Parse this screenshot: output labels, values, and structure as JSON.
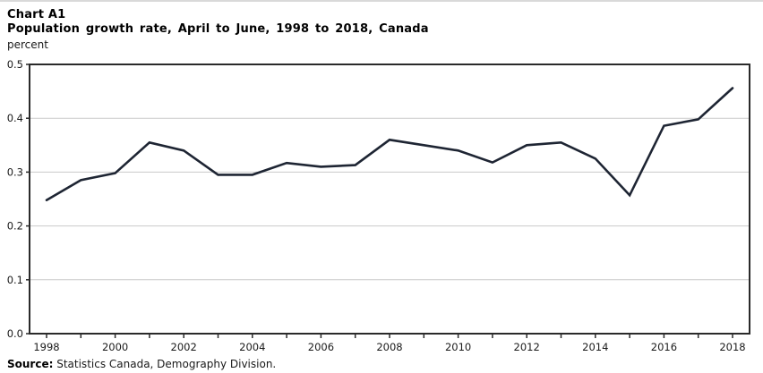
{
  "header": {
    "chart_label": "Chart A1",
    "chart_title": "Population growth rate, April to June, 1998 to 2018, Canada",
    "unit_label": "percent"
  },
  "source": {
    "prefix": "Source:",
    "text": " Statistics Canada, Demography Division."
  },
  "colors": {
    "line": "#1e2533",
    "grid": "#c9c9c9",
    "axis": "#2a2a2a",
    "tick_text": "#1a1a1a"
  },
  "chart_data": {
    "type": "line",
    "title": "Population growth rate, April to June, 1998 to 2018, Canada",
    "xlabel": "",
    "ylabel": "percent",
    "x": [
      1998,
      1999,
      2000,
      2001,
      2002,
      2003,
      2004,
      2005,
      2006,
      2007,
      2008,
      2009,
      2010,
      2011,
      2012,
      2013,
      2014,
      2015,
      2016,
      2017,
      2018
    ],
    "values": [
      0.248,
      0.285,
      0.298,
      0.355,
      0.34,
      0.295,
      0.295,
      0.317,
      0.31,
      0.313,
      0.36,
      0.35,
      0.34,
      0.318,
      0.35,
      0.355,
      0.325,
      0.257,
      0.386,
      0.398,
      0.456
    ],
    "ylim": [
      0,
      0.5
    ],
    "yticks": [
      0.0,
      0.1,
      0.2,
      0.3,
      0.4,
      0.5
    ],
    "ytick_labels": [
      "0.0",
      "0.1",
      "0.2",
      "0.3",
      "0.4",
      "0.5"
    ],
    "xtick_labels": [
      "1998",
      "2000",
      "2002",
      "2004",
      "2006",
      "2008",
      "2010",
      "2012",
      "2014",
      "2016",
      "2018"
    ],
    "xtick_label_years": [
      1998,
      2000,
      2002,
      2004,
      2006,
      2008,
      2010,
      2012,
      2014,
      2016,
      2018
    ],
    "grid": true,
    "legend": false,
    "series_name": "Population growth rate"
  }
}
